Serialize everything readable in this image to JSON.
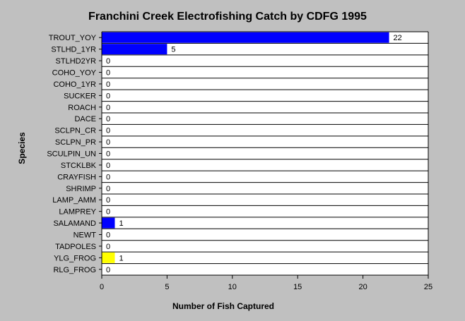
{
  "chart_data": {
    "type": "bar",
    "orientation": "horizontal",
    "title": "Franchini Creek Electrofishing Catch by CDFG 1995",
    "xlabel": "Number of Fish Captured",
    "ylabel": "Species",
    "xlim": [
      0,
      25
    ],
    "xticks": [
      "0",
      "5",
      "10",
      "15",
      "20",
      "25"
    ],
    "categories": [
      "TROUT_YOY",
      "STLHD_1YR",
      "STLHD2YR",
      "COHO_YOY",
      "COHO_1YR",
      "SUCKER",
      "ROACH",
      "DACE",
      "SCLPN_CR",
      "SCLPN_PR",
      "SCULPIN_UN",
      "STCKLBK",
      "CRAYFISH",
      "SHRIMP",
      "LAMP_AMM",
      "LAMPREY",
      "SALAMAND",
      "NEWT",
      "TADPOLES",
      "YLG_FROG",
      "RLG_FROG"
    ],
    "values": [
      22,
      5,
      0,
      0,
      0,
      0,
      0,
      0,
      0,
      0,
      0,
      0,
      0,
      0,
      0,
      0,
      1,
      0,
      0,
      1,
      0
    ],
    "bar_colors": [
      "#0000ff",
      "#0000ff",
      "#0000ff",
      "#0000ff",
      "#0000ff",
      "#0000ff",
      "#0000ff",
      "#0000ff",
      "#0000ff",
      "#0000ff",
      "#0000ff",
      "#0000ff",
      "#0000ff",
      "#0000ff",
      "#0000ff",
      "#0000ff",
      "#0000ff",
      "#0000ff",
      "#0000ff",
      "#ffff00",
      "#0000ff"
    ],
    "grid": "horizontal lines between categories",
    "legend": "none"
  }
}
